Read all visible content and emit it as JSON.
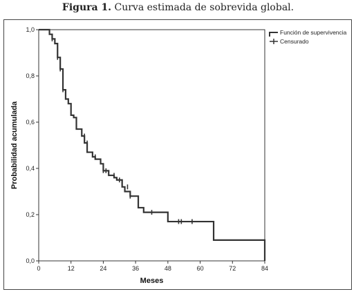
{
  "figure": {
    "label": "Figura 1.",
    "caption": "Curva estimada de sobrevida global."
  },
  "chart_data": {
    "type": "line",
    "title": "Curva estimada de sobrevida global.",
    "xlabel": "Meses",
    "ylabel": "Probabilidad acumulada",
    "xlim": [
      0,
      84
    ],
    "ylim": [
      0,
      1
    ],
    "x_ticks": [
      "0",
      "12",
      "24",
      "36",
      "48",
      "60",
      "72",
      "84"
    ],
    "x_tick_values": [
      0,
      12,
      24,
      36,
      48,
      60,
      72,
      84
    ],
    "y_ticks": [
      "0,0",
      "0,2",
      "0,4",
      "0,6",
      "0,8",
      "1,0"
    ],
    "y_tick_values": [
      0,
      0.2,
      0.4,
      0.6,
      0.8,
      1.0
    ],
    "grid": false,
    "legend_position": "top-right",
    "series": [
      {
        "name": "Función de supervivencia",
        "kind": "step",
        "x": [
          0,
          4,
          5,
          6,
          7,
          8,
          9,
          10,
          11,
          12,
          13,
          14,
          16,
          17,
          18,
          20,
          21,
          23,
          24,
          26,
          28,
          29,
          31,
          32,
          34,
          37,
          39,
          42,
          48,
          54,
          65,
          84
        ],
        "y": [
          1.0,
          0.98,
          0.96,
          0.94,
          0.88,
          0.83,
          0.74,
          0.7,
          0.68,
          0.63,
          0.62,
          0.57,
          0.54,
          0.51,
          0.47,
          0.45,
          0.44,
          0.42,
          0.39,
          0.37,
          0.36,
          0.35,
          0.32,
          0.3,
          0.28,
          0.23,
          0.21,
          0.21,
          0.17,
          0.17,
          0.09,
          0.0
        ]
      },
      {
        "name": "Censurado",
        "kind": "censor-marks",
        "x": [
          5,
          7,
          8,
          9,
          17,
          18,
          21,
          24,
          25,
          28,
          30,
          31,
          33,
          34,
          42,
          52,
          53,
          57
        ],
        "y": [
          0.96,
          0.88,
          0.83,
          0.74,
          0.54,
          0.51,
          0.45,
          0.39,
          0.39,
          0.37,
          0.35,
          0.34,
          0.32,
          0.28,
          0.21,
          0.17,
          0.17,
          0.17
        ]
      }
    ]
  }
}
